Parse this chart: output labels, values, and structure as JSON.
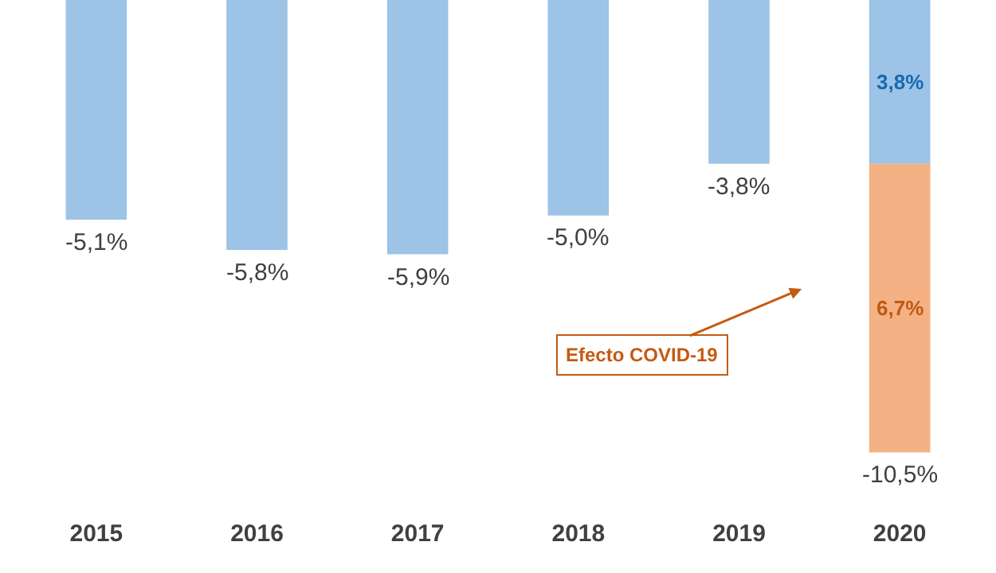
{
  "chart_data": {
    "type": "bar",
    "stacked": true,
    "categories": [
      "2015",
      "2016",
      "2017",
      "2018",
      "2019",
      "2020"
    ],
    "series": [
      {
        "color": "#9dc3e6",
        "values": [
          -5.1,
          -5.8,
          -5.9,
          -5.0,
          -3.8,
          -3.8
        ],
        "value_labels": [
          "-5,1%",
          "-5,8%",
          "-5,9%",
          "-5,0%",
          "-3,8%",
          null
        ]
      },
      {
        "color": "#f4b183",
        "values": [
          null,
          null,
          null,
          null,
          null,
          -6.7
        ],
        "value_labels": [
          null,
          null,
          null,
          null,
          null,
          null
        ]
      }
    ],
    "totals": [
      null,
      null,
      null,
      null,
      null,
      "-10,5%"
    ],
    "annotations": [
      "Efecto COVID-19",
      "3,8%",
      "6,7%"
    ]
  }
}
